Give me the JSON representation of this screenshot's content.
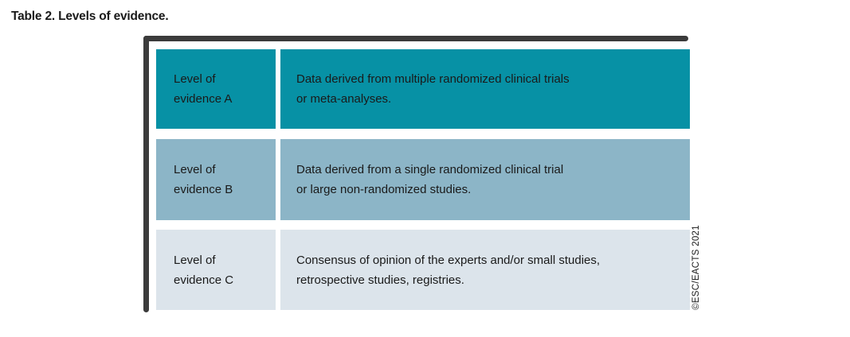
{
  "title": "Table 2. Levels of evidence.",
  "copyright": "©ESC/EACTS 2021",
  "table": {
    "rows": [
      {
        "label": "Level of\nevidence A",
        "description": "Data derived from multiple randomized clinical trials\nor meta-analyses.",
        "bg": "#0791A5"
      },
      {
        "label": "Level of\nevidence B",
        "description": "Data derived from a single randomized clinical trial\nor large non-randomized studies.",
        "bg": "#8CB5C7"
      },
      {
        "label": "Level of\nevidence C",
        "description": "Consensus of opinion of the experts and/or small studies,\nretrospective studies, registries.",
        "bg": "#DCE4EB"
      }
    ]
  },
  "colors": {
    "frame_border": "#3B3B3B",
    "text": "#1A1A1A",
    "background": "#FFFFFF"
  }
}
